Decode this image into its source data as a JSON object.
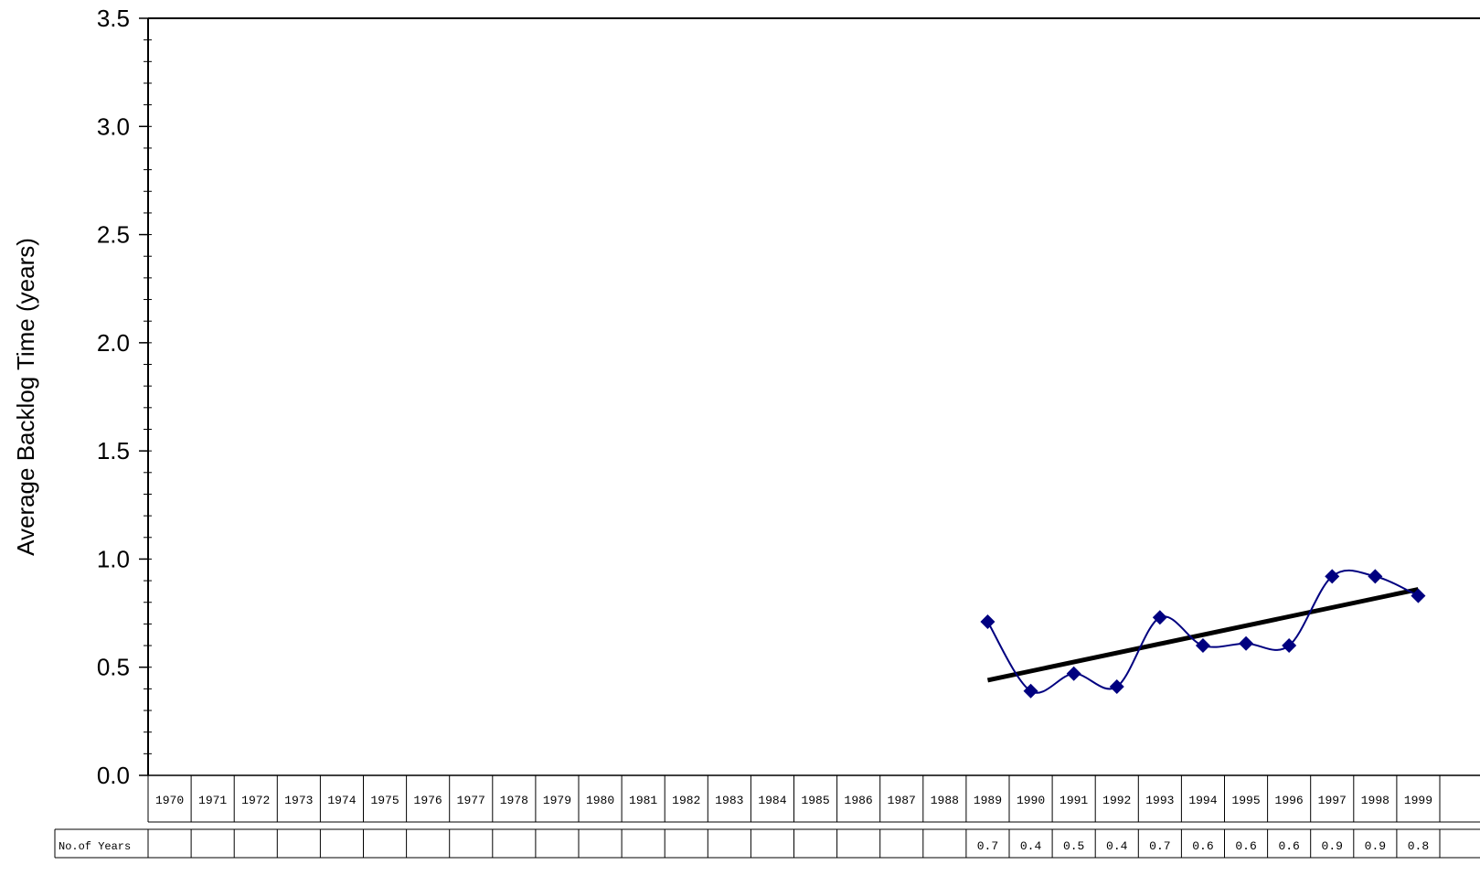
{
  "chart_data": {
    "type": "line",
    "title": "",
    "ylabel": "Average Backlog Time (years)",
    "xlabel": "",
    "ylim": [
      0.0,
      3.5
    ],
    "yticks": [
      "0.0",
      "0.5",
      "1.0",
      "1.5",
      "2.0",
      "2.5",
      "3.0",
      "3.5"
    ],
    "grid": false,
    "legend": "none",
    "categories": [
      "1970",
      "1971",
      "1972",
      "1973",
      "1974",
      "1975",
      "1976",
      "1977",
      "1978",
      "1979",
      "1980",
      "1981",
      "1982",
      "1983",
      "1984",
      "1985",
      "1986",
      "1987",
      "1988",
      "1989",
      "1990",
      "1991",
      "1992",
      "1993",
      "1994",
      "1995",
      "1996",
      "1997",
      "1998",
      "1999"
    ],
    "series": [
      {
        "color": "#000080",
        "marker": "diamond",
        "smooth": true,
        "points": [
          {
            "x": "1989",
            "y": 0.71
          },
          {
            "x": "1990",
            "y": 0.39
          },
          {
            "x": "1991",
            "y": 0.47
          },
          {
            "x": "1992",
            "y": 0.41
          },
          {
            "x": "1993",
            "y": 0.73
          },
          {
            "x": "1994",
            "y": 0.6
          },
          {
            "x": "1995",
            "y": 0.61
          },
          {
            "x": "1996",
            "y": 0.6
          },
          {
            "x": "1997",
            "y": 0.92
          },
          {
            "x": "1998",
            "y": 0.92
          },
          {
            "x": "1999",
            "y": 0.83
          }
        ]
      }
    ],
    "trendline": {
      "color": "#000000",
      "start": {
        "x": "1989",
        "y": 0.44
      },
      "end": {
        "x": "1999",
        "y": 0.86
      }
    },
    "table": {
      "row_label": "No.of Years",
      "values": [
        "",
        "",
        "",
        "",
        "",
        "",
        "",
        "",
        "",
        "",
        "",
        "",
        "",
        "",
        "",
        "",
        "",
        "",
        "",
        "0.7",
        "0.4",
        "0.5",
        "0.4",
        "0.7",
        "0.6",
        "0.6",
        "0.6",
        "0.9",
        "0.9",
        "0.8"
      ]
    }
  }
}
